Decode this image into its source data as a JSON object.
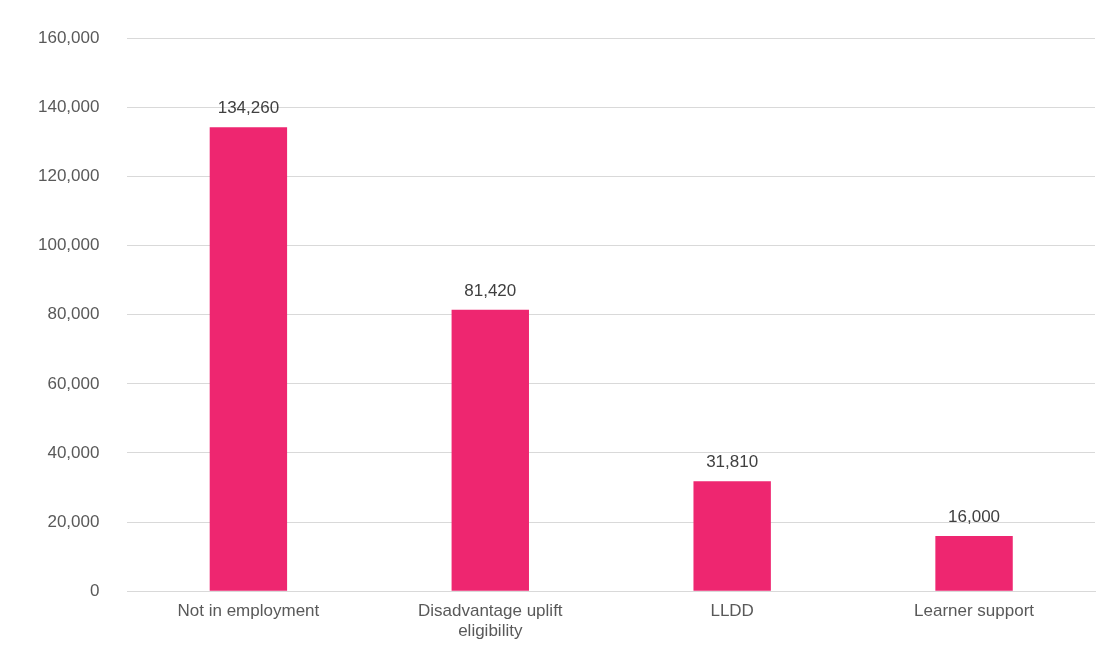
{
  "chart_data": {
    "type": "bar",
    "categories": [
      "Not in employment",
      "Disadvantage uplift eligibility",
      "LLDD",
      "Learner support"
    ],
    "values": [
      134260,
      81420,
      31810,
      16000
    ],
    "value_labels": [
      "134,260",
      "81,420",
      "31,810",
      "16,000"
    ],
    "color": "#ee2670",
    "ylim": [
      0,
      160000
    ],
    "yticks": [
      0,
      {
        "value": 20000,
        "label": "20,000"
      },
      {
        "value": 40000,
        "label": "40,000"
      },
      {
        "value": 60000,
        "label": "60,000"
      },
      {
        "value": 80000,
        "label": "80,000"
      },
      {
        "value": 100000,
        "label": "100,000"
      },
      {
        "value": 120000,
        "label": "120,000"
      },
      {
        "value": 140000,
        "label": "140,000"
      },
      {
        "value": 160000,
        "label": "160,000"
      }
    ],
    "grid": "y",
    "legend": false
  }
}
